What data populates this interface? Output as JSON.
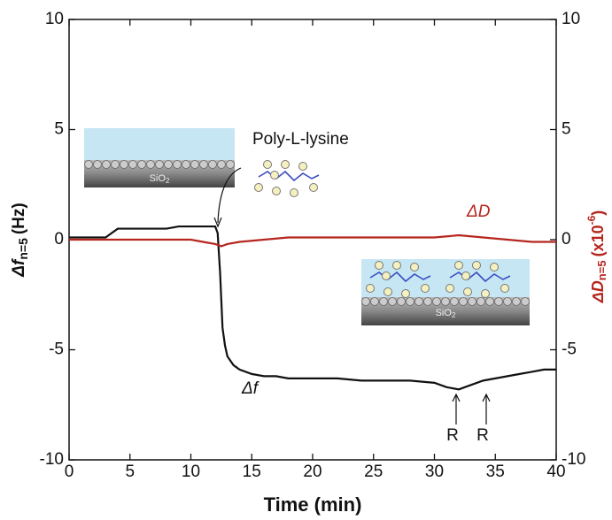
{
  "chart_data": {
    "type": "line",
    "xlabel": "Time (min)",
    "ylabel": "Δf",
    "ylabel_sub": "n=5",
    "ylabel_unit": "(Hz)",
    "y2label": "ΔD",
    "y2label_sub": "n=5",
    "y2label_unit": "(x10",
    "y2label_exp": "-6",
    "y2label_close": ")",
    "xlim": [
      0,
      40
    ],
    "xticks": [
      0,
      5,
      10,
      15,
      20,
      25,
      30,
      35,
      40
    ],
    "ylim": [
      -10,
      10
    ],
    "yticks": [
      -10,
      -5,
      0,
      5,
      10
    ],
    "y2lim": [
      -10,
      10
    ],
    "y2ticks": [
      -10,
      -5,
      0,
      5,
      10
    ],
    "series": [
      {
        "name": "Δf",
        "color": "#111111",
        "x": [
          0,
          1,
          2,
          3,
          3.5,
          4,
          5,
          6,
          7,
          8,
          9,
          10,
          11,
          12,
          12.2,
          12.4,
          12.6,
          12.8,
          13,
          13.5,
          14,
          15,
          16,
          17,
          18,
          19,
          20,
          22,
          24,
          26,
          28,
          30,
          31,
          32,
          33,
          34,
          35,
          36,
          37,
          38,
          39,
          40
        ],
        "values": [
          0.1,
          0.1,
          0.1,
          0.1,
          0.3,
          0.5,
          0.5,
          0.5,
          0.5,
          0.5,
          0.6,
          0.6,
          0.6,
          0.6,
          0.3,
          -1.5,
          -4,
          -4.8,
          -5.3,
          -5.7,
          -5.9,
          -6.1,
          -6.2,
          -6.2,
          -6.3,
          -6.3,
          -6.3,
          -6.3,
          -6.4,
          -6.4,
          -6.4,
          -6.5,
          -6.7,
          -6.8,
          -6.6,
          -6.4,
          -6.3,
          -6.2,
          -6.1,
          -6,
          -5.9,
          -5.9
        ]
      },
      {
        "name": "ΔD",
        "color": "#b5261e",
        "axis": "y2",
        "x": [
          0,
          2,
          4,
          6,
          8,
          10,
          11,
          12,
          12.5,
          13,
          14,
          16,
          18,
          20,
          22,
          24,
          26,
          28,
          30,
          32,
          34,
          36,
          38,
          40
        ],
        "values": [
          0,
          0,
          0,
          0,
          0,
          0,
          -0.1,
          -0.2,
          -0.3,
          -0.2,
          -0.1,
          0,
          0.1,
          0.1,
          0.1,
          0.1,
          0.1,
          0.1,
          0.1,
          0.2,
          0.1,
          0,
          -0.1,
          -0.1
        ]
      }
    ],
    "annotations": [
      "Poly-L-lysine",
      "R",
      "R"
    ],
    "substrate": {
      "text": "SiO",
      "sub": "2"
    }
  }
}
